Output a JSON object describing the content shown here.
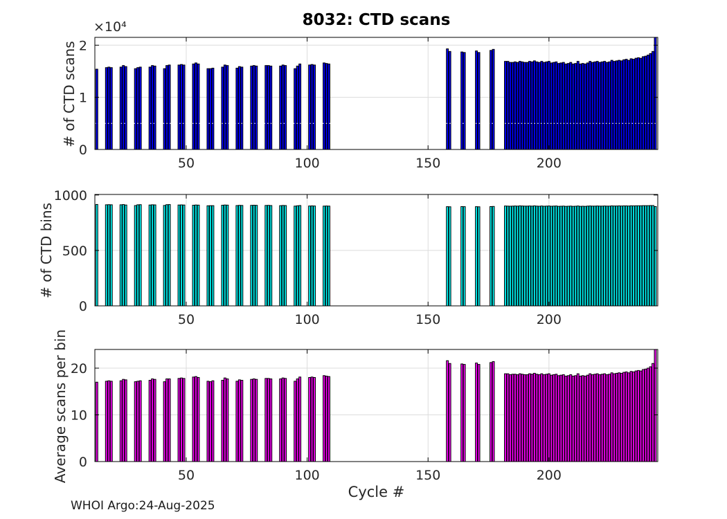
{
  "figure": {
    "title": "8032: CTD scans",
    "xlabel": "Cycle #",
    "footer": "WHOI Argo:24-Aug-2025",
    "background": "#ffffff",
    "text_color": "#262626",
    "grid_color": "#dcdcdc",
    "axis_color": "#000000"
  },
  "axes_x": {
    "xlim": [
      12.2,
      245
    ],
    "ticks": [
      50,
      100,
      150,
      200
    ],
    "tick_labels": [
      "50",
      "100",
      "150",
      "200"
    ]
  },
  "chart_data": [
    {
      "type": "bar",
      "name": "ctd-scans",
      "ylabel": "# of CTD scans",
      "exponent_label": "×10⁴",
      "bar_color": "#0000f5",
      "bar_edge_color": "#000000",
      "grid": true,
      "legend": null,
      "ylim": [
        0,
        21500
      ],
      "yticks": [
        0,
        10000,
        20000
      ],
      "ytick_labels": [
        "0",
        "1",
        "2"
      ],
      "reference_line": {
        "y": 5000,
        "color": "#ffffff",
        "style": "dotted"
      },
      "x": [
        13,
        17,
        18,
        19,
        23,
        24,
        25,
        29,
        30,
        31,
        35,
        36,
        37,
        41,
        42,
        43,
        47,
        48,
        49,
        53,
        54,
        55,
        59,
        60,
        61,
        65,
        66,
        67,
        71,
        72,
        73,
        77,
        78,
        79,
        83,
        84,
        85,
        89,
        90,
        91,
        95,
        96,
        97,
        101,
        102,
        103,
        107,
        108,
        109,
        158,
        159,
        164,
        165,
        170,
        171,
        176,
        177,
        182,
        183,
        184,
        185,
        186,
        187,
        188,
        189,
        190,
        191,
        192,
        193,
        194,
        195,
        196,
        197,
        198,
        199,
        200,
        201,
        202,
        203,
        204,
        205,
        206,
        207,
        208,
        209,
        210,
        211,
        212,
        213,
        214,
        215,
        216,
        217,
        218,
        219,
        220,
        221,
        222,
        223,
        224,
        225,
        226,
        227,
        228,
        229,
        230,
        231,
        232,
        233,
        234,
        235,
        236,
        237,
        238,
        239,
        240,
        241,
        242,
        243,
        244
      ],
      "values": [
        15400,
        15700,
        15800,
        15700,
        15800,
        16100,
        15900,
        15500,
        15700,
        15800,
        15800,
        16100,
        16000,
        15500,
        16100,
        16200,
        16200,
        16300,
        16200,
        16400,
        16600,
        16400,
        15500,
        15500,
        15600,
        15800,
        16200,
        16100,
        15600,
        15900,
        15800,
        16000,
        16100,
        16000,
        16100,
        16100,
        16000,
        16000,
        16200,
        16100,
        15500,
        16000,
        16400,
        16200,
        16300,
        16200,
        16600,
        16500,
        16400,
        19300,
        18800,
        18700,
        18600,
        18900,
        18600,
        19000,
        19200,
        16900,
        16900,
        16700,
        16700,
        16800,
        16700,
        16900,
        16800,
        16700,
        16700,
        16900,
        16800,
        17000,
        16800,
        16700,
        16900,
        16700,
        16800,
        16900,
        16600,
        16700,
        16800,
        16500,
        16600,
        16700,
        16400,
        16500,
        16700,
        16400,
        16500,
        16900,
        16400,
        16500,
        16400,
        16600,
        16900,
        16700,
        16800,
        16900,
        16700,
        16800,
        16900,
        16700,
        16800,
        17100,
        16900,
        17000,
        17100,
        17000,
        17200,
        17300,
        17100,
        17400,
        17300,
        17500,
        17600,
        17500,
        17800,
        17900,
        18100,
        18400,
        18800,
        21500
      ]
    },
    {
      "type": "bar",
      "name": "ctd-bins",
      "ylabel": "# of CTD bins",
      "exponent_label": "",
      "bar_color": "#00eded",
      "bar_edge_color": "#000000",
      "grid": true,
      "legend": null,
      "ylim": [
        0,
        1005
      ],
      "yticks": [
        0,
        500,
        1000
      ],
      "ytick_labels": [
        "0",
        "500",
        "1000"
      ],
      "reference_line": null,
      "x": [
        13,
        17,
        18,
        19,
        23,
        24,
        25,
        29,
        30,
        31,
        35,
        36,
        37,
        41,
        42,
        43,
        47,
        48,
        49,
        53,
        54,
        55,
        59,
        60,
        61,
        65,
        66,
        67,
        71,
        72,
        73,
        77,
        78,
        79,
        83,
        84,
        85,
        89,
        90,
        91,
        95,
        96,
        97,
        101,
        102,
        103,
        107,
        108,
        109,
        158,
        159,
        164,
        165,
        170,
        171,
        176,
        177,
        182,
        183,
        184,
        185,
        186,
        187,
        188,
        189,
        190,
        191,
        192,
        193,
        194,
        195,
        196,
        197,
        198,
        199,
        200,
        201,
        202,
        203,
        204,
        205,
        206,
        207,
        208,
        209,
        210,
        211,
        212,
        213,
        214,
        215,
        216,
        217,
        218,
        219,
        220,
        221,
        222,
        223,
        224,
        225,
        226,
        227,
        228,
        229,
        230,
        231,
        232,
        233,
        234,
        235,
        236,
        237,
        238,
        239,
        240,
        241,
        242,
        243,
        244
      ],
      "values": [
        915,
        912,
        913,
        912,
        912,
        914,
        910,
        905,
        912,
        913,
        910,
        912,
        911,
        906,
        913,
        914,
        910,
        911,
        910,
        908,
        910,
        909,
        903,
        904,
        904,
        908,
        910,
        909,
        905,
        907,
        906,
        907,
        908,
        907,
        906,
        907,
        905,
        904,
        906,
        905,
        900,
        903,
        905,
        901,
        902,
        901,
        900,
        901,
        900,
        895,
        894,
        896,
        895,
        895,
        894,
        896,
        897,
        901,
        900,
        899,
        900,
        901,
        900,
        902,
        901,
        900,
        900,
        901,
        900,
        902,
        900,
        899,
        901,
        899,
        900,
        901,
        899,
        900,
        901,
        898,
        899,
        900,
        898,
        899,
        900,
        898,
        899,
        901,
        898,
        899,
        898,
        900,
        901,
        900,
        900,
        901,
        900,
        900,
        901,
        900,
        900,
        902,
        901,
        901,
        902,
        901,
        902,
        902,
        901,
        903,
        902,
        903,
        903,
        903,
        904,
        904,
        904,
        905,
        905,
        896
      ]
    },
    {
      "type": "bar",
      "name": "avg-scans-per-bin",
      "ylabel": "Average scans per bin",
      "exponent_label": "",
      "bar_color": "#f000f0",
      "bar_edge_color": "#000000",
      "grid": true,
      "legend": null,
      "ylim": [
        0,
        24
      ],
      "yticks": [
        0,
        10,
        20
      ],
      "ytick_labels": [
        "0",
        "10",
        "20"
      ],
      "reference_line": null,
      "x": [
        13,
        17,
        18,
        19,
        23,
        24,
        25,
        29,
        30,
        31,
        35,
        36,
        37,
        41,
        42,
        43,
        47,
        48,
        49,
        53,
        54,
        55,
        59,
        60,
        61,
        65,
        66,
        67,
        71,
        72,
        73,
        77,
        78,
        79,
        83,
        84,
        85,
        89,
        90,
        91,
        95,
        96,
        97,
        101,
        102,
        103,
        107,
        108,
        109,
        158,
        159,
        164,
        165,
        170,
        171,
        176,
        177,
        182,
        183,
        184,
        185,
        186,
        187,
        188,
        189,
        190,
        191,
        192,
        193,
        194,
        195,
        196,
        197,
        198,
        199,
        200,
        201,
        202,
        203,
        204,
        205,
        206,
        207,
        208,
        209,
        210,
        211,
        212,
        213,
        214,
        215,
        216,
        217,
        218,
        219,
        220,
        221,
        222,
        223,
        224,
        225,
        226,
        227,
        228,
        229,
        230,
        231,
        232,
        233,
        234,
        235,
        236,
        237,
        238,
        239,
        240,
        241,
        242,
        243,
        244
      ],
      "values": [
        17.0,
        17.2,
        17.3,
        17.2,
        17.3,
        17.6,
        17.5,
        17.1,
        17.2,
        17.3,
        17.4,
        17.7,
        17.6,
        17.1,
        17.7,
        17.7,
        17.8,
        17.9,
        17.8,
        18.1,
        18.2,
        18.0,
        17.2,
        17.1,
        17.3,
        17.4,
        17.9,
        17.7,
        17.2,
        17.5,
        17.4,
        17.6,
        17.7,
        17.6,
        17.8,
        17.8,
        17.7,
        17.7,
        17.9,
        17.8,
        17.2,
        17.7,
        18.1,
        18.0,
        18.1,
        18.0,
        18.4,
        18.3,
        18.2,
        21.6,
        21.0,
        20.9,
        20.8,
        21.1,
        20.8,
        21.2,
        21.4,
        18.8,
        18.8,
        18.6,
        18.7,
        18.7,
        18.6,
        18.8,
        18.7,
        18.6,
        18.6,
        18.8,
        18.7,
        18.9,
        18.7,
        18.6,
        18.8,
        18.6,
        18.7,
        18.8,
        18.5,
        18.6,
        18.7,
        18.4,
        18.5,
        18.6,
        18.3,
        18.4,
        18.6,
        18.3,
        18.4,
        18.8,
        18.3,
        18.4,
        18.3,
        18.5,
        18.8,
        18.6,
        18.7,
        18.8,
        18.6,
        18.7,
        18.8,
        18.6,
        18.7,
        19.0,
        18.8,
        18.9,
        19.0,
        18.9,
        19.1,
        19.2,
        19.0,
        19.3,
        19.2,
        19.4,
        19.5,
        19.4,
        19.7,
        19.8,
        20.0,
        20.3,
        21.0,
        24.0
      ]
    }
  ]
}
